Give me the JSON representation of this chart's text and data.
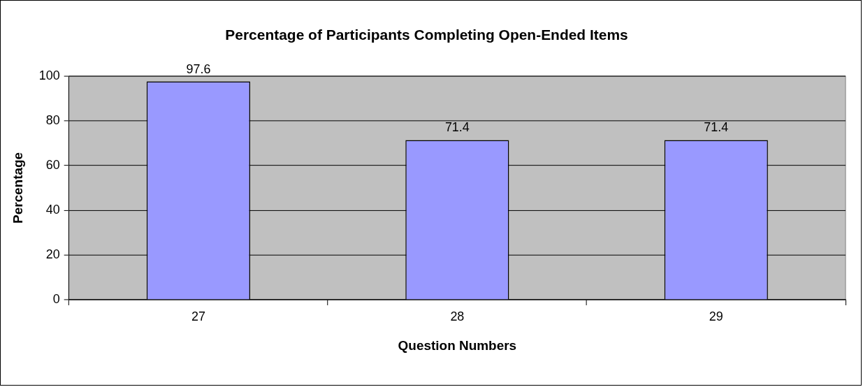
{
  "chart_data": {
    "type": "bar",
    "title": "Percentage of Participants Completing Open-Ended Items",
    "xlabel": "Question Numbers",
    "ylabel": "Percentage",
    "categories": [
      "27",
      "28",
      "29"
    ],
    "values": [
      97.6,
      71.4,
      71.4
    ],
    "color": "#9999ff",
    "ylim": [
      0,
      100
    ],
    "yticks": [
      0,
      20,
      40,
      60,
      80,
      100
    ],
    "grid": "y",
    "data_labels": true,
    "legend": false
  }
}
